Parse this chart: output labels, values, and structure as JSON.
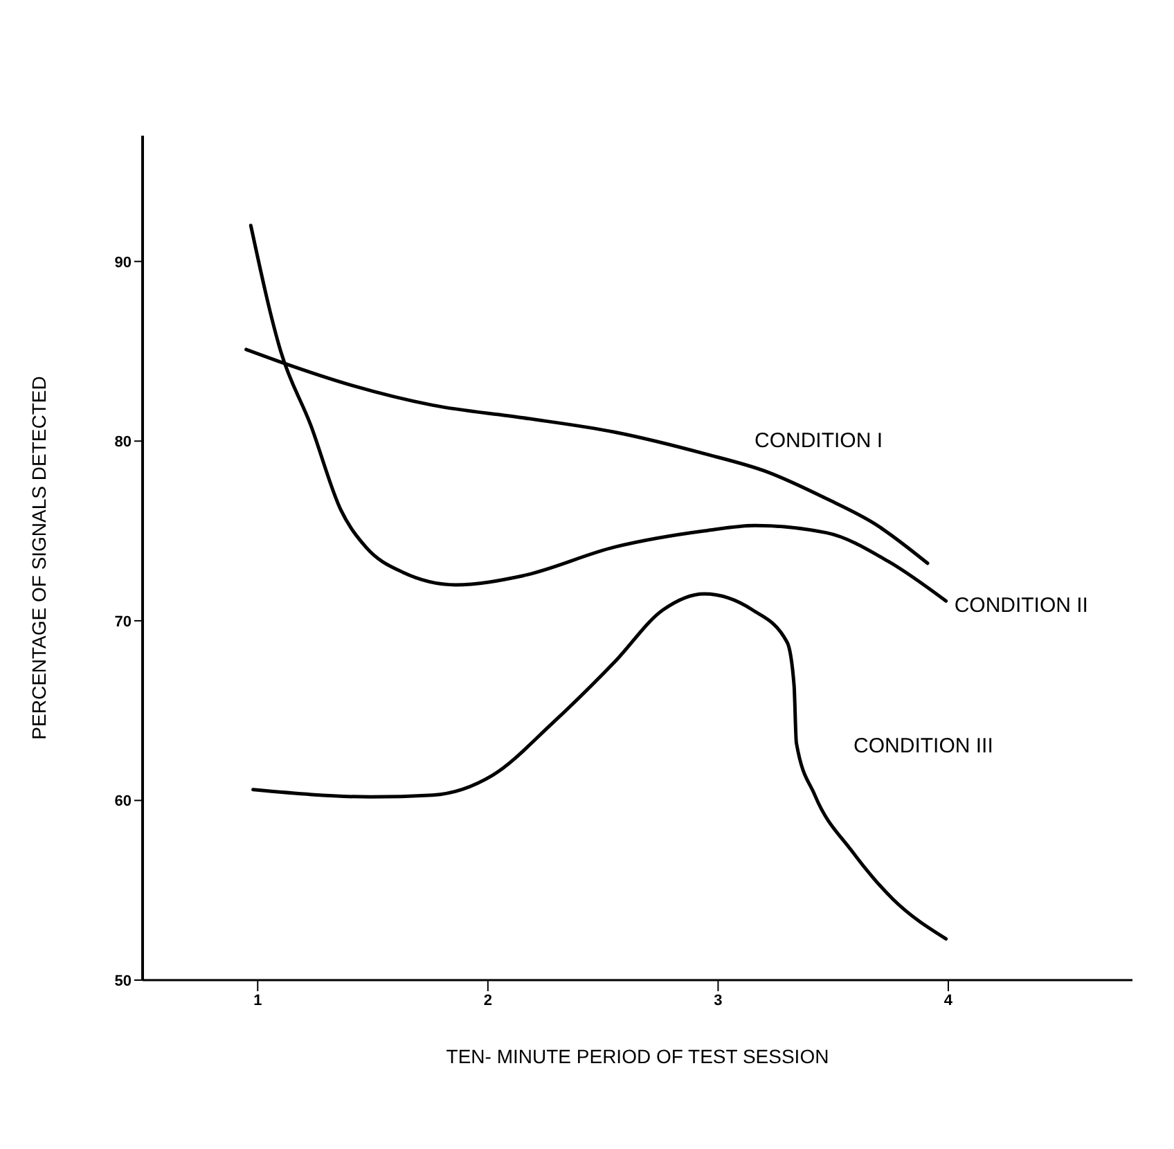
{
  "chart_data": {
    "type": "line",
    "xlabel": "TEN- MINUTE PERIOD OF TEST SESSION",
    "ylabel": "PERCENTAGE OF SIGNALS DETECTED",
    "xlim": [
      0.5,
      4.8
    ],
    "xticks": [
      1,
      2,
      3,
      4
    ],
    "ylim": [
      50,
      97
    ],
    "yticks": [
      50,
      60,
      70,
      80,
      90
    ],
    "grid": false,
    "legend": false,
    "marker": "none",
    "line_style": "solid",
    "series": [
      {
        "name": "CONDITION I",
        "color": "#000000",
        "x": [
          0.95,
          1.1,
          1.41,
          1.76,
          2.15,
          2.55,
          2.94,
          3.21,
          3.47,
          3.68,
          3.91
        ],
        "values": [
          85.1,
          84.4,
          83.1,
          82.0,
          81.3,
          80.5,
          79.3,
          78.3,
          76.8,
          75.4,
          73.2
        ]
      },
      {
        "name": "CONDITION II",
        "color": "#000000",
        "x": [
          0.97,
          1.1,
          1.23,
          1.36,
          1.47,
          1.63,
          1.86,
          2.15,
          2.55,
          2.94,
          3.16,
          3.47,
          3.74,
          3.99
        ],
        "values": [
          92,
          85,
          80.9,
          76.2,
          74.1,
          72.7,
          72.0,
          72.5,
          74.1,
          75.0,
          75.3,
          74.9,
          73.3,
          71.1
        ]
      },
      {
        "name": "CONDITION III",
        "color": "#000000",
        "x": [
          0.98,
          1.49,
          1.76,
          2.02,
          2.28,
          2.55,
          2.76,
          2.94,
          3.15,
          3.3,
          3.33,
          3.34,
          3.42,
          3.58,
          3.76,
          3.99
        ],
        "values": [
          60.6,
          60.2,
          60.3,
          61.4,
          64.3,
          67.7,
          70.6,
          71.5,
          70.6,
          68.8,
          66.4,
          63.2,
          60.3,
          57.2,
          54.5,
          52.3
        ]
      }
    ]
  }
}
